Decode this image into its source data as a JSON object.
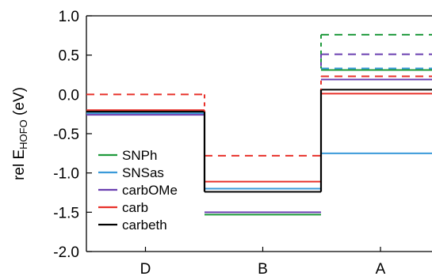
{
  "chart_data": {
    "type": "line",
    "title": "",
    "ylabel": "rel E",
    "ylabel_sub": "HOFO",
    "ylabel_unit": " (eV)",
    "xlabel": "",
    "categories": [
      "D",
      "B",
      "A"
    ],
    "ylim": [
      -2.0,
      1.0
    ],
    "yticks": [
      "1.0",
      "0.5",
      "0.0",
      "-0.5",
      "-1.0",
      "-1.5",
      "-2.0"
    ],
    "ytick_values": [
      1.0,
      0.5,
      0.0,
      -0.5,
      -1.0,
      -1.5,
      -2.0
    ],
    "legend_position": "lower-left",
    "series": [
      {
        "name": "SNPh",
        "color": "#1f9a3c",
        "solid": [
          -0.22,
          -1.53,
          0.31
        ],
        "dashed": [
          null,
          null,
          0.76
        ]
      },
      {
        "name": "SNSas",
        "color": "#3a9ad9",
        "solid": [
          -0.24,
          -1.2,
          -0.75
        ],
        "dashed": [
          null,
          null,
          0.33
        ]
      },
      {
        "name": "carbOMe",
        "color": "#6a3fb0",
        "solid": [
          -0.26,
          -1.5,
          0.19
        ],
        "dashed": [
          null,
          null,
          0.51
        ]
      },
      {
        "name": "carb",
        "color": "#e8312a",
        "solid": [
          -0.2,
          -1.11,
          0.01
        ],
        "dashed": [
          0.0,
          -0.78,
          0.23
        ]
      },
      {
        "name": "carbeth",
        "color": "#000000",
        "solid": [
          -0.22,
          -1.24,
          0.06
        ],
        "dashed": [
          null,
          null,
          null
        ],
        "connector": true
      }
    ]
  }
}
